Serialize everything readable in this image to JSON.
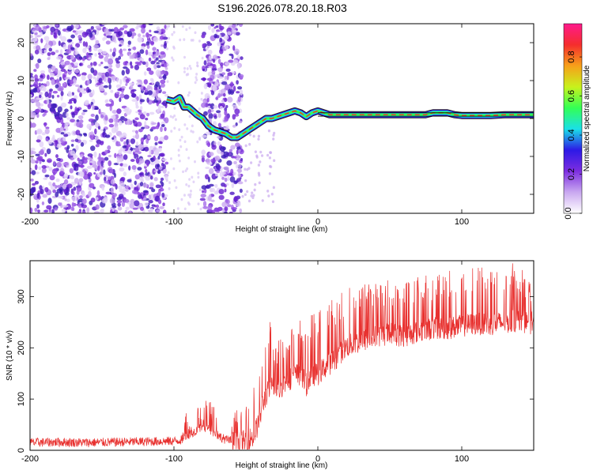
{
  "title": "S196.2026.078.20.18.R03",
  "colors": {
    "snr_line": "#e8312f",
    "speckle": "#6a1fd1",
    "frame": "#000000"
  },
  "chart_data": [
    {
      "type": "heatmap",
      "title": "S196.2026.078.20.18.R03",
      "xlabel": "Height of straight line (km)",
      "ylabel": "Frequency (Hz)",
      "xlim": [
        -200,
        150
      ],
      "ylim": [
        -25,
        25
      ],
      "xticks": [
        -200,
        -100,
        0,
        100
      ],
      "yticks": [
        -20,
        -10,
        0,
        10,
        20
      ],
      "colorbar": {
        "label": "Normalized spectral amplitude",
        "range": [
          0.0,
          0.97
        ],
        "ticks": [
          0.0,
          0.2,
          0.4,
          0.6,
          0.8
        ],
        "colormap": [
          "#ffffff",
          "#c9a8f0",
          "#7d2ee0",
          "#2d19e6",
          "#1ae0e8",
          "#33ff55",
          "#c8f21c",
          "#f7a01a",
          "#f52d2d",
          "#ff1a8c"
        ]
      },
      "noise_regions": [
        {
          "x": [
            -200,
            -105
          ],
          "note": "dense purple speckle"
        },
        {
          "x": [
            -80,
            -53
          ],
          "note": "dense purple speckle"
        }
      ],
      "signal_track": {
        "x": [
          -105,
          -100,
          -96,
          -93,
          -90,
          -87,
          -84,
          -80,
          -76,
          -72,
          -68,
          -64,
          -60,
          -56,
          -52,
          -48,
          -44,
          -40,
          -36,
          -32,
          -28,
          -24,
          -20,
          -16,
          -12,
          -8,
          -4,
          0,
          4,
          8,
          12,
          20,
          40,
          60,
          75,
          80,
          85,
          90,
          95,
          100,
          110,
          120,
          130,
          140,
          150
        ],
        "y": [
          5,
          4.5,
          5.5,
          3,
          3,
          2,
          1,
          0,
          -2,
          -3,
          -3.5,
          -4,
          -5,
          -5,
          -4,
          -3,
          -2,
          -1,
          0,
          0,
          0.5,
          1,
          1.5,
          2,
          1.5,
          0.5,
          1.5,
          2,
          1.5,
          1,
          1,
          1,
          1,
          1,
          1,
          1.5,
          1.5,
          1.5,
          1,
          0.8,
          0.8,
          0.8,
          1,
          1,
          1
        ]
      },
      "legend": "colorbar right"
    },
    {
      "type": "line",
      "xlabel": "Height of straight line (km)",
      "ylabel": "SNR (10 * v/v)",
      "xlim": [
        -200,
        150
      ],
      "ylim": [
        0,
        370
      ],
      "xticks": [
        -200,
        -100,
        0,
        100
      ],
      "yticks": [
        0,
        100,
        200,
        300
      ],
      "series": [
        {
          "name": "SNR",
          "color": "#e8312f",
          "x": [
            -200,
            -180,
            -160,
            -140,
            -120,
            -100,
            -95,
            -90,
            -85,
            -80,
            -75,
            -70,
            -65,
            -60,
            -55,
            -50,
            -45,
            -42,
            -40,
            -38,
            -36,
            -34,
            -32,
            -30,
            -28,
            -26,
            -24,
            -20,
            -16,
            -12,
            -8,
            -4,
            0,
            5,
            10,
            15,
            20,
            25,
            30,
            40,
            50,
            60,
            70,
            80,
            90,
            100,
            110,
            120,
            130,
            140,
            150
          ],
          "y": [
            15,
            16,
            15,
            16,
            17,
            18,
            20,
            30,
            38,
            45,
            40,
            30,
            22,
            18,
            18,
            20,
            28,
            50,
            70,
            95,
            110,
            120,
            125,
            110,
            115,
            125,
            130,
            140,
            150,
            150,
            130,
            150,
            150,
            165,
            175,
            190,
            205,
            210,
            215,
            225,
            230,
            225,
            235,
            240,
            240,
            245,
            250,
            248,
            252,
            255,
            250
          ]
        }
      ],
      "spikes_envelope": {
        "x": [
          -60,
          -50,
          -40,
          -35,
          -30,
          -20,
          -10,
          0,
          10,
          20,
          30,
          40,
          60,
          80,
          100,
          120,
          130,
          140,
          150
        ],
        "y": [
          70,
          95,
          160,
          275,
          210,
          240,
          260,
          270,
          300,
          320,
          330,
          335,
          335,
          345,
          360,
          355,
          360,
          370,
          310
        ]
      }
    }
  ]
}
